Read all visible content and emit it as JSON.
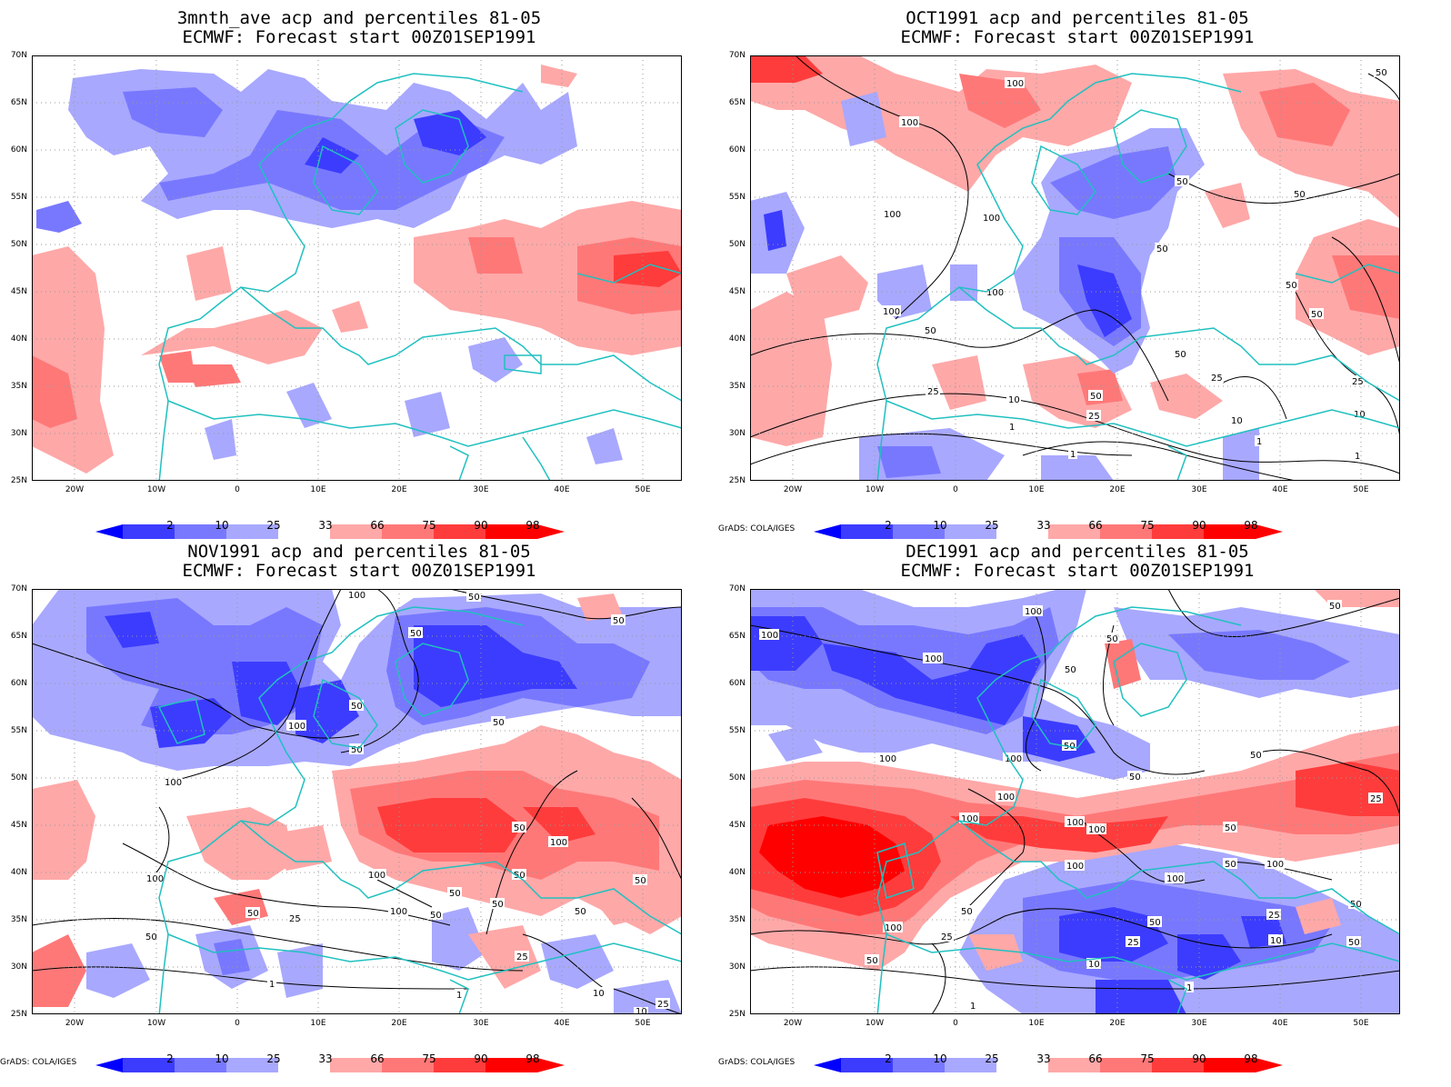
{
  "panels": [
    {
      "title_line1": "3mnth_ave acp and percentiles 81-05",
      "title_line2": "ECMWF: Forecast start 00Z01SEP1991",
      "credit": ""
    },
    {
      "title_line1": "OCT1991 acp and percentiles 81-05",
      "title_line2": "ECMWF: Forecast start 00Z01SEP1991",
      "credit": "GrADS: COLA/IGES"
    },
    {
      "title_line1": "NOV1991 acp and percentiles 81-05",
      "title_line2": "ECMWF: Forecast start 00Z01SEP1991",
      "credit": "GrADS: COLA/IGES"
    },
    {
      "title_line1": "DEC1991 acp and percentiles 81-05",
      "title_line2": "ECMWF: Forecast start 00Z01SEP1991",
      "credit": "GrADS: COLA/IGES"
    }
  ],
  "axes": {
    "lat_labels": [
      "70N",
      "65N",
      "60N",
      "55N",
      "50N",
      "45N",
      "40N",
      "35N",
      "30N",
      "25N"
    ],
    "lon_labels": [
      "20W",
      "10W",
      "0",
      "10E",
      "20E",
      "30E",
      "40E",
      "50E"
    ]
  },
  "legend": {
    "labels": [
      "2",
      "10",
      "25",
      "33",
      "66",
      "75",
      "90",
      "98"
    ],
    "colors": [
      "#0000ff",
      "#3c3cff",
      "#7878ff",
      "#a8a8ff",
      "#ffffff",
      "#ffa8a8",
      "#ff7878",
      "#ff3c3c",
      "#ff0000"
    ]
  },
  "colors": {
    "coast": "#20c0c0",
    "grid": "#999999",
    "contour": "#000000"
  }
}
